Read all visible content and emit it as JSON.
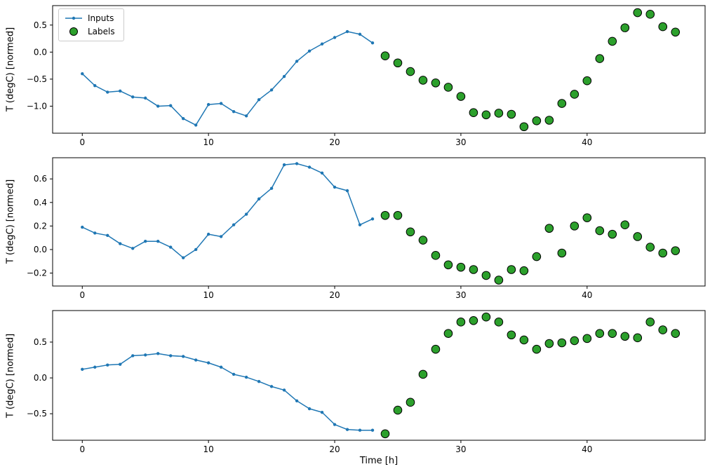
{
  "figure": {
    "xlabel": "Time [h]",
    "ylabel": "T (degC) [normed]",
    "legend": [
      {
        "label": "Inputs",
        "marker": "line-with-dot",
        "color": "#1f77b4"
      },
      {
        "label": "Labels",
        "marker": "circle",
        "color": "#2ca02c",
        "edgecolor": "#000000"
      }
    ]
  },
  "chart_data": [
    {
      "type": "line",
      "title": "",
      "xlabel": "",
      "ylabel": "T (degC) [normed]",
      "xlim": [
        -2.35,
        49.35
      ],
      "ylim": [
        -1.5,
        0.86
      ],
      "xticks": [
        0,
        10,
        20,
        30,
        40
      ],
      "yticks": [
        0.5,
        0.0,
        -0.5,
        -1.0
      ],
      "xtick_decimals": 0,
      "ytick_decimals": 1,
      "grid": false,
      "legend_position": "upper-left",
      "series": [
        {
          "name": "Inputs",
          "type": "line",
          "color": "#1f77b4",
          "x": [
            0,
            1,
            2,
            3,
            4,
            5,
            6,
            7,
            8,
            9,
            10,
            11,
            12,
            13,
            14,
            15,
            16,
            17,
            18,
            19,
            20,
            21,
            22,
            23
          ],
          "values": [
            -0.4,
            -0.62,
            -0.74,
            -0.72,
            -0.83,
            -0.85,
            -1.0,
            -0.99,
            -1.23,
            -1.35,
            -0.97,
            -0.95,
            -1.1,
            -1.18,
            -0.88,
            -0.7,
            -0.45,
            -0.17,
            0.02,
            0.15,
            0.27,
            0.38,
            0.33,
            0.17
          ]
        },
        {
          "name": "Labels",
          "type": "scatter",
          "color": "#2ca02c",
          "edgecolor": "#000000",
          "x": [
            24,
            25,
            26,
            27,
            28,
            29,
            30,
            31,
            32,
            33,
            34,
            35,
            36,
            37,
            38,
            39,
            40,
            41,
            42,
            43,
            44,
            45,
            46,
            47
          ],
          "values": [
            -0.07,
            -0.2,
            -0.36,
            -0.52,
            -0.57,
            -0.65,
            -0.82,
            -1.12,
            -1.16,
            -1.13,
            -1.15,
            -1.38,
            -1.27,
            -1.26,
            -0.95,
            -0.78,
            -0.53,
            -0.12,
            0.2,
            0.45,
            0.73,
            0.7,
            0.47,
            0.37
          ]
        }
      ]
    },
    {
      "type": "line",
      "title": "",
      "xlabel": "",
      "ylabel": "T (degC) [normed]",
      "xlim": [
        -2.35,
        49.35
      ],
      "ylim": [
        -0.31,
        0.78
      ],
      "xticks": [
        0,
        10,
        20,
        30,
        40
      ],
      "yticks": [
        0.6,
        0.4,
        0.2,
        0.0,
        -0.2
      ],
      "xtick_decimals": 0,
      "ytick_decimals": 1,
      "grid": false,
      "series": [
        {
          "name": "Inputs",
          "type": "line",
          "color": "#1f77b4",
          "x": [
            0,
            1,
            2,
            3,
            4,
            5,
            6,
            7,
            8,
            9,
            10,
            11,
            12,
            13,
            14,
            15,
            16,
            17,
            18,
            19,
            20,
            21,
            22,
            23
          ],
          "values": [
            0.19,
            0.14,
            0.12,
            0.05,
            0.01,
            0.07,
            0.07,
            0.02,
            -0.07,
            0.0,
            0.13,
            0.11,
            0.21,
            0.3,
            0.43,
            0.52,
            0.72,
            0.73,
            0.7,
            0.65,
            0.53,
            0.5,
            0.21,
            0.26
          ]
        },
        {
          "name": "Labels",
          "type": "scatter",
          "color": "#2ca02c",
          "edgecolor": "#000000",
          "x": [
            24,
            25,
            26,
            27,
            28,
            29,
            30,
            31,
            32,
            33,
            34,
            35,
            36,
            37,
            38,
            39,
            40,
            41,
            42,
            43,
            44,
            45,
            46,
            47
          ],
          "values": [
            0.29,
            0.29,
            0.15,
            0.08,
            -0.05,
            -0.13,
            -0.15,
            -0.17,
            -0.22,
            -0.26,
            -0.17,
            -0.18,
            -0.06,
            0.18,
            -0.03,
            0.2,
            0.27,
            0.16,
            0.13,
            0.21,
            0.11,
            0.02,
            -0.03,
            -0.01
          ]
        }
      ]
    },
    {
      "type": "line",
      "title": "",
      "xlabel": "Time [h]",
      "ylabel": "T (degC) [normed]",
      "xlim": [
        -2.35,
        49.35
      ],
      "ylim": [
        -0.87,
        0.94
      ],
      "xticks": [
        0,
        10,
        20,
        30,
        40
      ],
      "yticks": [
        0.5,
        0.0,
        -0.5
      ],
      "xtick_decimals": 0,
      "ytick_decimals": 1,
      "grid": false,
      "series": [
        {
          "name": "Inputs",
          "type": "line",
          "color": "#1f77b4",
          "x": [
            0,
            1,
            2,
            3,
            4,
            5,
            6,
            7,
            8,
            9,
            10,
            11,
            12,
            13,
            14,
            15,
            16,
            17,
            18,
            19,
            20,
            21,
            22,
            23
          ],
          "values": [
            0.12,
            0.15,
            0.18,
            0.19,
            0.31,
            0.32,
            0.34,
            0.31,
            0.3,
            0.25,
            0.21,
            0.15,
            0.05,
            0.01,
            -0.05,
            -0.12,
            -0.17,
            -0.32,
            -0.43,
            -0.48,
            -0.65,
            -0.72,
            -0.73,
            -0.73
          ]
        },
        {
          "name": "Labels",
          "type": "scatter",
          "color": "#2ca02c",
          "edgecolor": "#000000",
          "x": [
            24,
            25,
            26,
            27,
            28,
            29,
            30,
            31,
            32,
            33,
            34,
            35,
            36,
            37,
            38,
            39,
            40,
            41,
            42,
            43,
            44,
            45,
            46,
            47
          ],
          "values": [
            -0.78,
            -0.45,
            -0.34,
            0.05,
            0.4,
            0.62,
            0.78,
            0.8,
            0.85,
            0.78,
            0.6,
            0.53,
            0.4,
            0.48,
            0.49,
            0.52,
            0.55,
            0.62,
            0.62,
            0.58,
            0.56,
            0.78,
            0.67,
            0.62
          ]
        }
      ]
    }
  ]
}
